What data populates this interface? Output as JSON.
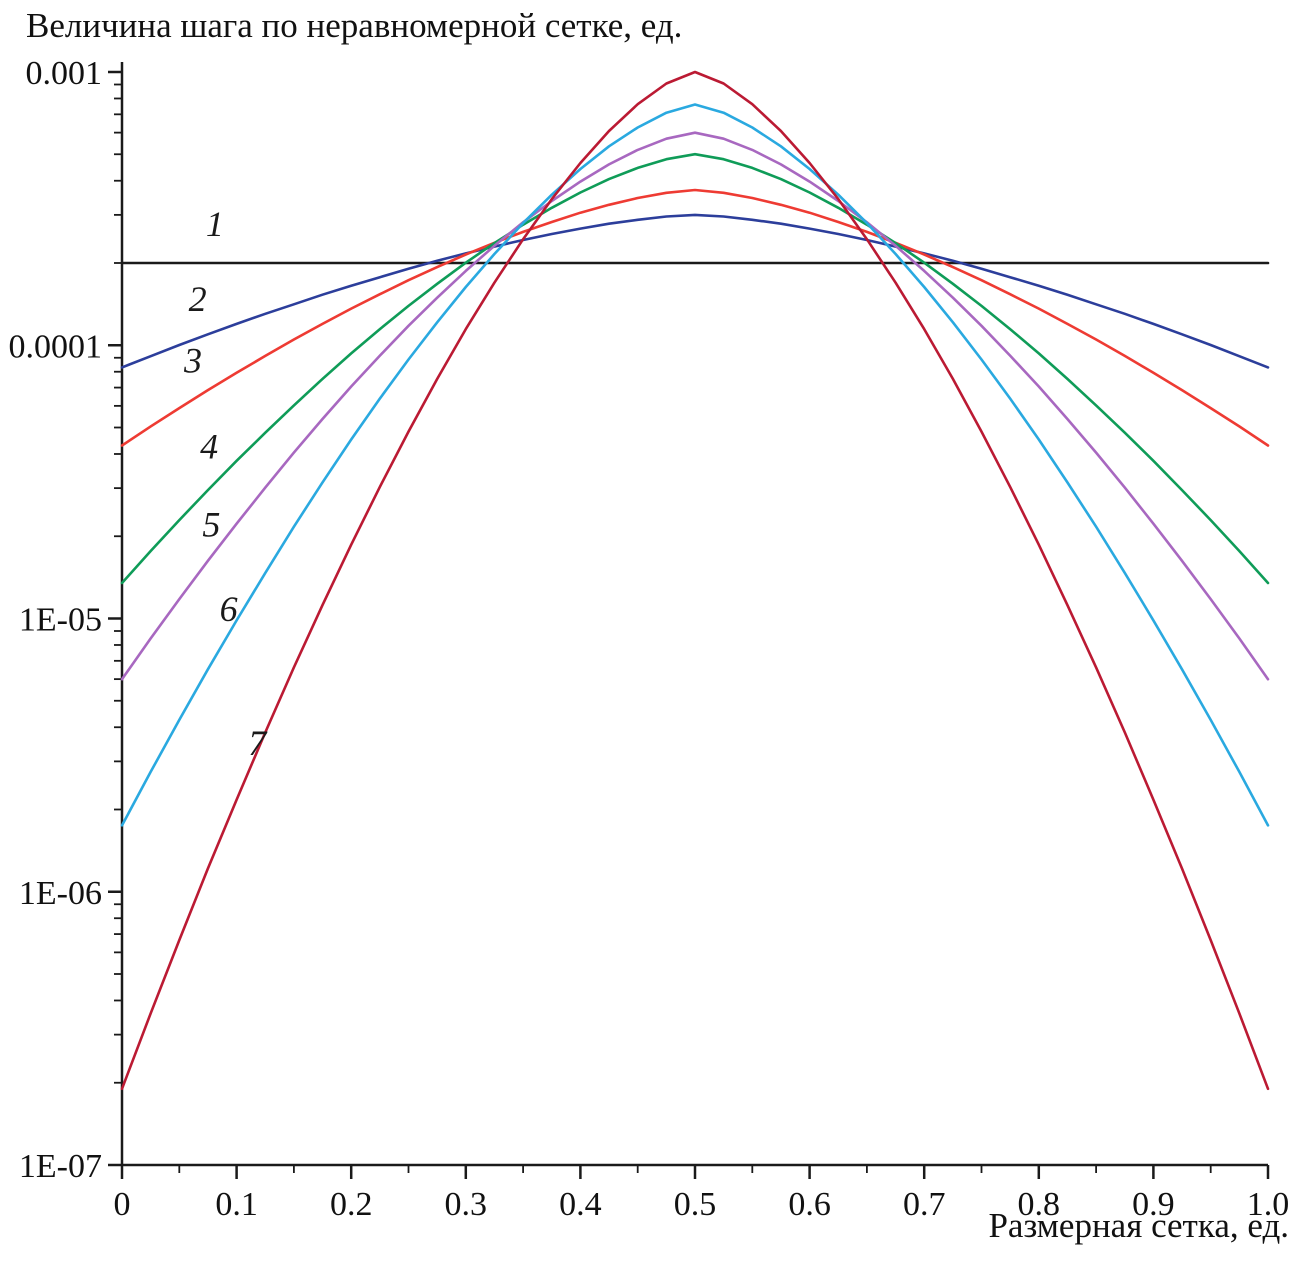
{
  "chart_data": {
    "type": "line",
    "title": "Величина шага по неравномерной сетке, ед.",
    "xlabel": "Размерная сетка, ед.",
    "ylabel": "",
    "x_scale": "linear",
    "y_scale": "log10",
    "xlim": [
      0,
      1.0
    ],
    "ylim": [
      1e-07,
      0.001
    ],
    "grid": false,
    "legend": "numbered labels beside curves on left side",
    "x_ticks": [
      0,
      0.1,
      0.2,
      0.3,
      0.4,
      0.5,
      0.6,
      0.7,
      0.8,
      0.9,
      1.0
    ],
    "x_tick_labels": [
      "0",
      "0.1",
      "0.2",
      "0.3",
      "0.4",
      "0.5",
      "0.6",
      "0.7",
      "0.8",
      "0.9",
      "1.0"
    ],
    "y_ticks": [
      {
        "label": "0.001",
        "log10": -3
      },
      {
        "label": "0.0001",
        "log10": -4
      },
      {
        "label": "1E-05",
        "log10": -5
      },
      {
        "label": "1E-06",
        "log10": -6
      },
      {
        "label": "1E-07",
        "log10": -7
      }
    ],
    "x_minor_step": 0.05,
    "x_half": [
      0,
      0.025,
      0.05,
      0.075,
      0.1,
      0.125,
      0.15,
      0.175,
      0.2,
      0.225,
      0.25,
      0.275,
      0.3,
      0.325,
      0.35,
      0.375,
      0.4,
      0.425,
      0.45,
      0.475,
      0.5
    ],
    "series_note": "curves are symmetric about x = 0.5; log10_y_half gives log10(step size) for x_half, mirrored for x in (0.5, 1.0]",
    "series": [
      {
        "number": "1",
        "color": "#1a1a1a",
        "peak_at_center": 0.0002,
        "value_at_edges": 0.0002,
        "log10_y_half": [
          -3.699,
          -3.699,
          -3.699,
          -3.699,
          -3.699,
          -3.699,
          -3.699,
          -3.699,
          -3.699,
          -3.699,
          -3.699,
          -3.699,
          -3.699,
          -3.699,
          -3.699,
          -3.699,
          -3.699,
          -3.699,
          -3.699,
          -3.699,
          -3.699
        ]
      },
      {
        "number": "2",
        "color": "#2c3e9b",
        "peak_at_center": 0.0003,
        "value_at_edges": 8.3e-05,
        "log10_y_half": [
          -4.081,
          -4.04,
          -3.999,
          -3.96,
          -3.922,
          -3.885,
          -3.85,
          -3.815,
          -3.782,
          -3.751,
          -3.72,
          -3.691,
          -3.664,
          -3.639,
          -3.615,
          -3.593,
          -3.573,
          -3.555,
          -3.541,
          -3.529,
          -3.523
        ]
      },
      {
        "number": "3",
        "color": "#ee3b33",
        "peak_at_center": 0.00037,
        "value_at_edges": 4.3e-05,
        "log10_y_half": [
          -4.367,
          -4.297,
          -4.23,
          -4.164,
          -4.101,
          -4.039,
          -3.979,
          -3.922,
          -3.866,
          -3.813,
          -3.762,
          -3.714,
          -3.668,
          -3.625,
          -3.585,
          -3.549,
          -3.515,
          -3.486,
          -3.461,
          -3.442,
          -3.432
        ]
      },
      {
        "number": "4",
        "color": "#0f9c58",
        "peak_at_center": 0.0005,
        "value_at_edges": 1.35e-05,
        "log10_y_half": [
          -4.87,
          -4.753,
          -4.64,
          -4.53,
          -4.423,
          -4.32,
          -4.22,
          -4.123,
          -4.03,
          -3.941,
          -3.856,
          -3.775,
          -3.698,
          -3.626,
          -3.559,
          -3.497,
          -3.441,
          -3.392,
          -3.351,
          -3.319,
          -3.301
        ]
      },
      {
        "number": "5",
        "color": "#a868c0",
        "peak_at_center": 0.0006,
        "value_at_edges": 6e-06,
        "log10_y_half": [
          -5.222,
          -5.073,
          -4.929,
          -4.789,
          -4.653,
          -4.521,
          -4.393,
          -4.27,
          -4.151,
          -4.038,
          -3.929,
          -3.826,
          -3.728,
          -3.636,
          -3.55,
          -3.472,
          -3.401,
          -3.338,
          -3.285,
          -3.244,
          -3.222
        ]
      },
      {
        "number": "6",
        "color": "#2aa9e0",
        "peak_at_center": 0.00076,
        "value_at_edges": 1.75e-06,
        "log10_y_half": [
          -5.757,
          -5.561,
          -5.371,
          -5.186,
          -5.007,
          -4.833,
          -4.664,
          -4.502,
          -4.345,
          -4.195,
          -4.052,
          -3.916,
          -3.787,
          -3.666,
          -3.553,
          -3.449,
          -3.355,
          -3.272,
          -3.203,
          -3.149,
          -3.119
        ]
      },
      {
        "number": "7",
        "color": "#bb1a33",
        "peak_at_center": 0.001,
        "value_at_edges": 1.9e-07,
        "log10_y_half": [
          -6.721,
          -6.445,
          -6.177,
          -5.915,
          -5.663,
          -5.417,
          -5.179,
          -4.951,
          -4.73,
          -4.518,
          -4.316,
          -4.123,
          -3.941,
          -3.771,
          -3.612,
          -3.465,
          -3.333,
          -3.216,
          -3.118,
          -3.042,
          -3.0
        ]
      }
    ],
    "curve_labels": [
      {
        "text": "1",
        "x": 0.081,
        "log10_y": -3.6
      },
      {
        "text": "2",
        "x": 0.066,
        "log10_y": -3.875
      },
      {
        "text": "3",
        "x": 0.062,
        "log10_y": -4.1
      },
      {
        "text": "4",
        "x": 0.076,
        "log10_y": -4.415
      },
      {
        "text": "5",
        "x": 0.078,
        "log10_y": -4.7
      },
      {
        "text": "6",
        "x": 0.093,
        "log10_y": -5.01
      },
      {
        "text": "7",
        "x": 0.118,
        "log10_y": -5.5
      }
    ]
  }
}
